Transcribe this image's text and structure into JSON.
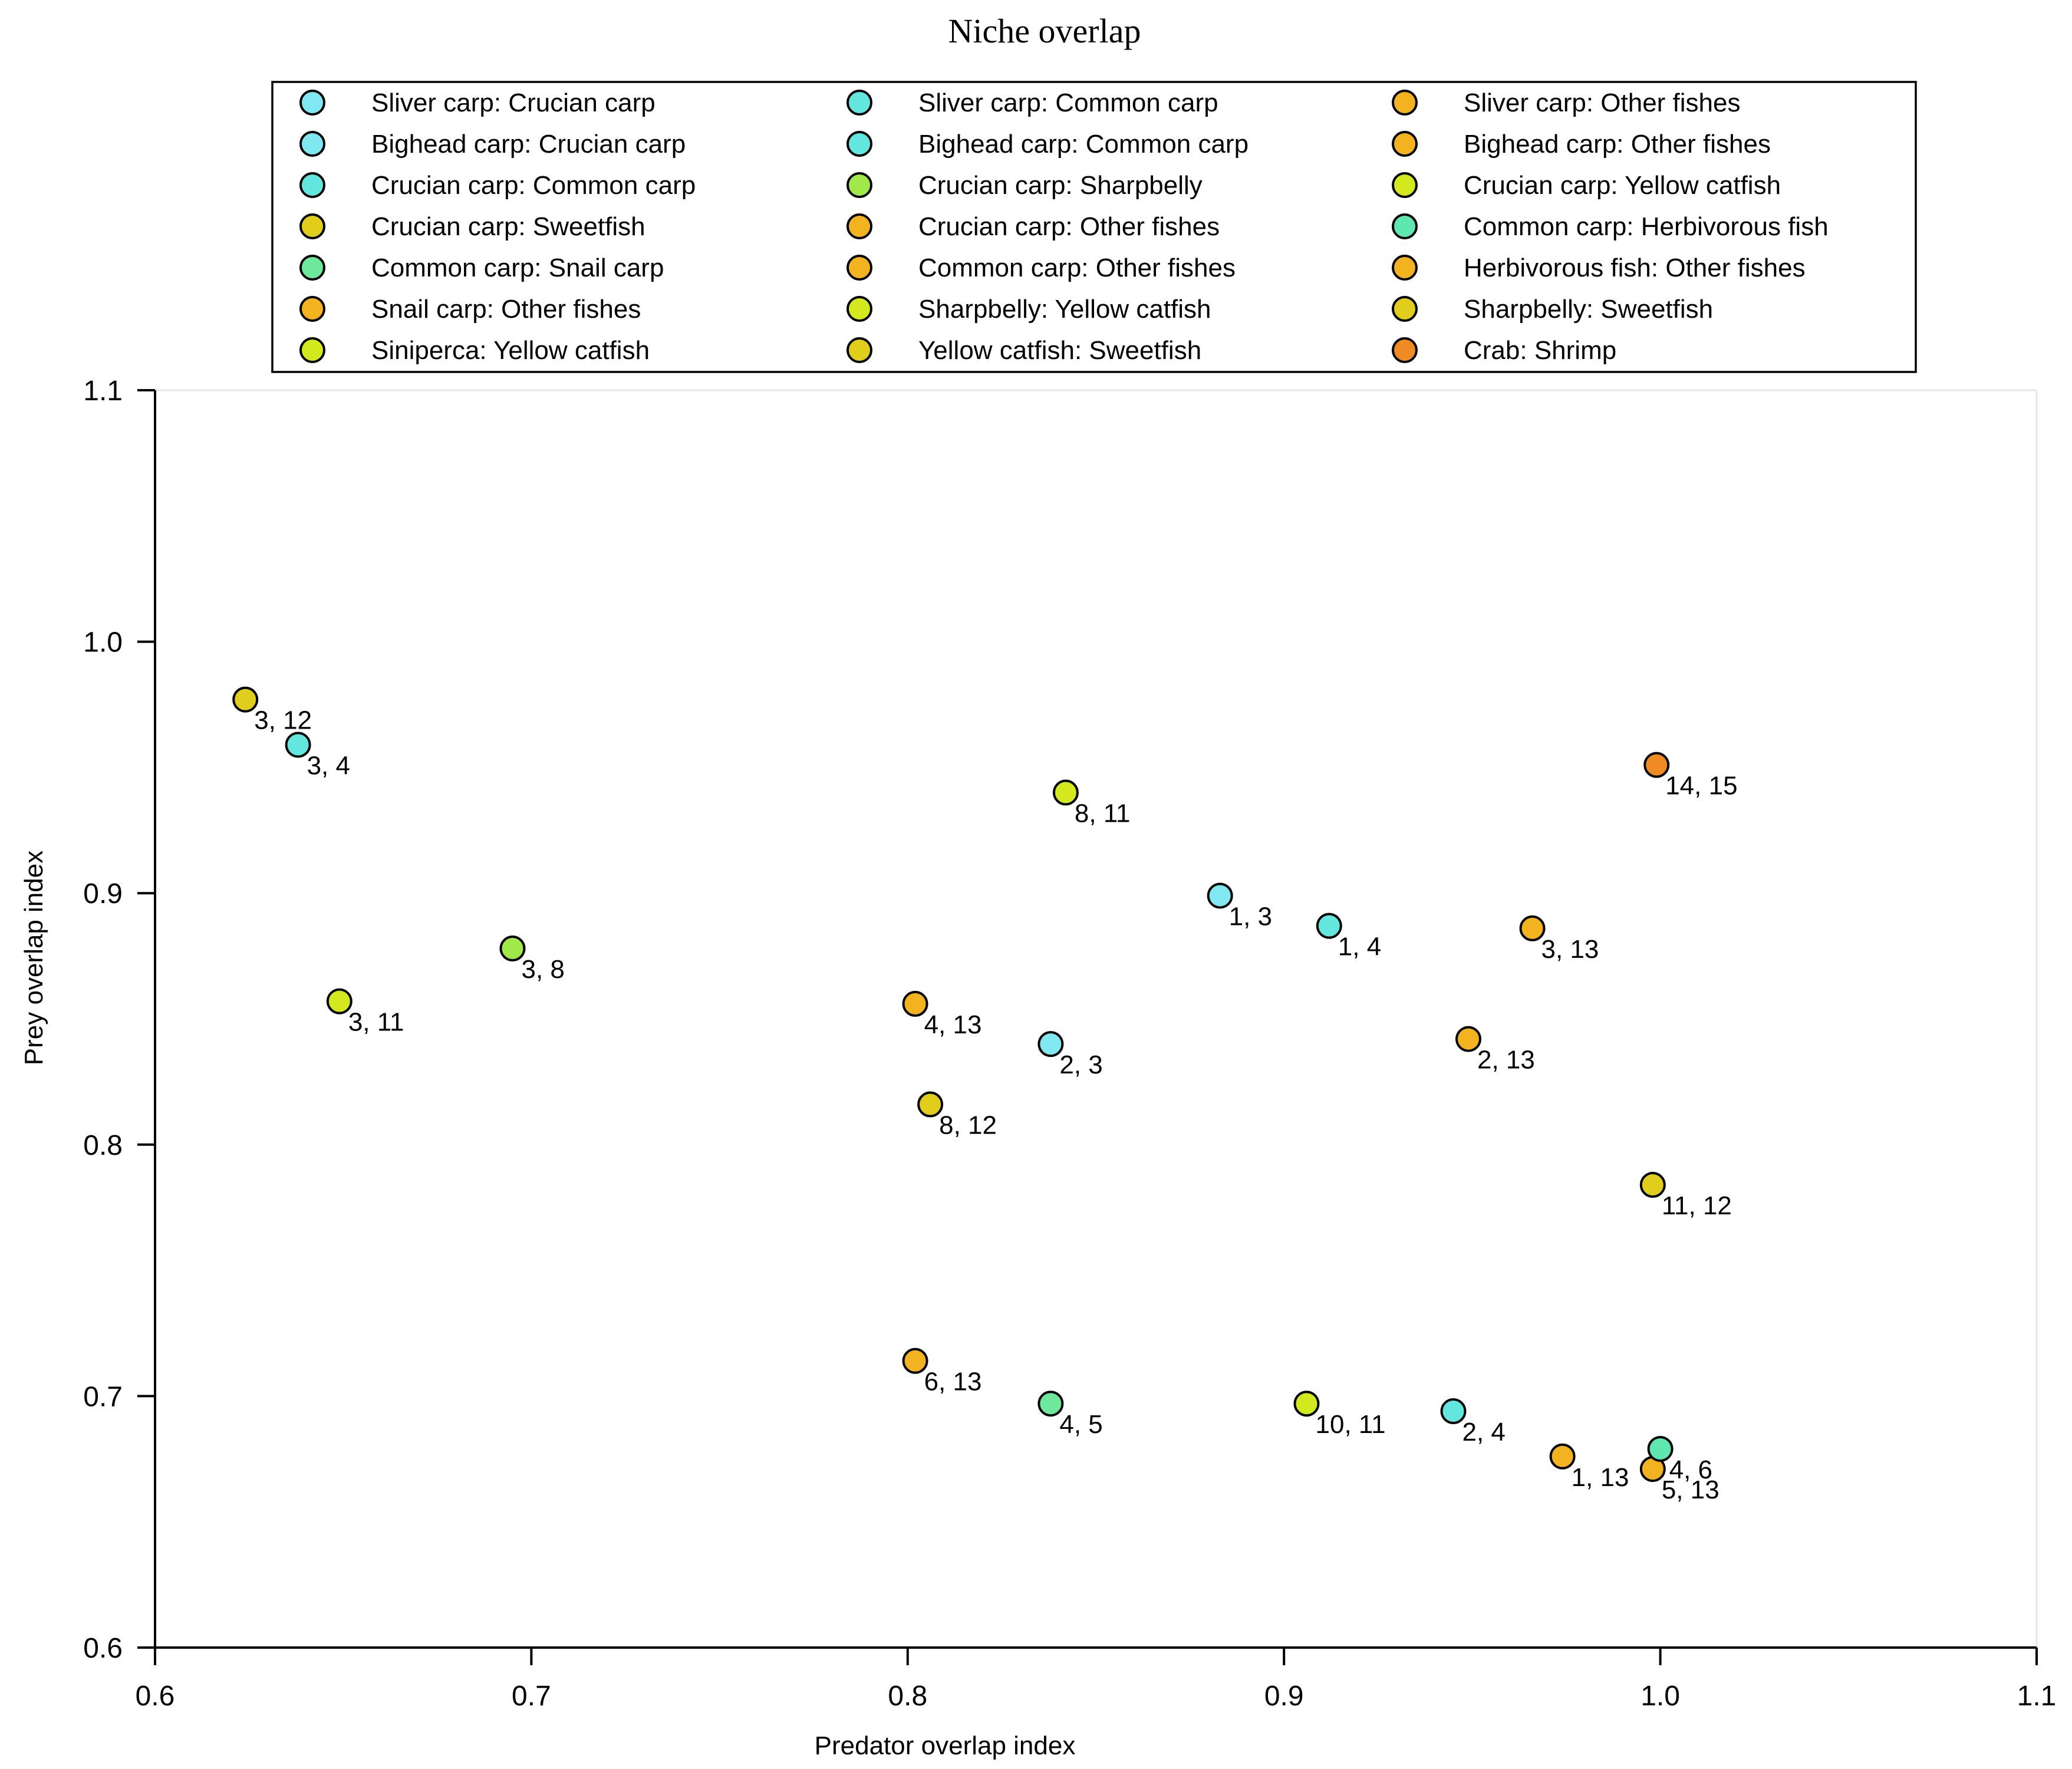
{
  "chart_data": {
    "type": "scatter",
    "title": "Niche overlap",
    "xlabel": "Predator overlap index",
    "ylabel": "Prey overlap index",
    "xlim": [
      0.6,
      1.1
    ],
    "ylim": [
      0.6,
      1.1
    ],
    "xticks": [
      "0.6",
      "0.7",
      "0.8",
      "0.9",
      "1.0",
      "1.1"
    ],
    "yticks": [
      "0.6",
      "0.7",
      "0.8",
      "0.9",
      "1.0",
      "1.1"
    ],
    "grid": false,
    "legend_position": "top-center",
    "series": [
      {
        "name": "Sliver carp: Crucian carp",
        "color": "#7fe8f0",
        "points": [
          {
            "x": 0.883,
            "y": 0.899,
            "label": "1, 3"
          }
        ]
      },
      {
        "name": "Bighead carp: Crucian carp",
        "color": "#7fe8f0",
        "points": [
          {
            "x": 0.838,
            "y": 0.84,
            "label": "2, 3"
          }
        ]
      },
      {
        "name": "Crucian carp: Common carp",
        "color": "#62e6dd",
        "points": [
          {
            "x": 0.638,
            "y": 0.959,
            "label": "3, 4"
          }
        ]
      },
      {
        "name": "Crucian carp: Sweetfish",
        "color": "#e0cd1c",
        "points": [
          {
            "x": 0.624,
            "y": 0.977,
            "label": "3, 12"
          }
        ]
      },
      {
        "name": "Common carp: Snail carp",
        "color": "#6ee89a",
        "points": [
          {
            "x": 0.838,
            "y": 0.697,
            "label": "4, 5"
          }
        ]
      },
      {
        "name": "Snail carp: Other fishes",
        "color": "#f3b21f",
        "points": [
          {
            "x": 0.998,
            "y": 0.671,
            "label": "5, 13"
          }
        ]
      },
      {
        "name": "Siniperca: Yellow catfish",
        "color": "#d3e81d",
        "points": [
          {
            "x": 0.906,
            "y": 0.697,
            "label": "10, 11"
          }
        ]
      },
      {
        "name": "Sliver carp: Common carp",
        "color": "#62e6dd",
        "points": [
          {
            "x": 0.912,
            "y": 0.887,
            "label": "1, 4"
          }
        ]
      },
      {
        "name": "Bighead carp: Common carp",
        "color": "#62e6dd",
        "points": [
          {
            "x": 0.945,
            "y": 0.694,
            "label": "2, 4"
          }
        ]
      },
      {
        "name": "Crucian carp: Sharpbelly",
        "color": "#a1e84b",
        "points": [
          {
            "x": 0.695,
            "y": 0.878,
            "label": "3, 8"
          }
        ]
      },
      {
        "name": "Crucian carp: Other fishes",
        "color": "#f3b21f",
        "points": [
          {
            "x": 0.966,
            "y": 0.886,
            "label": "3, 13"
          }
        ]
      },
      {
        "name": "Common carp: Other fishes",
        "color": "#f3b21f",
        "points": [
          {
            "x": 0.802,
            "y": 0.856,
            "label": "4, 13"
          }
        ]
      },
      {
        "name": "Sharpbelly: Yellow catfish",
        "color": "#d3e81d",
        "points": [
          {
            "x": 0.842,
            "y": 0.94,
            "label": "8, 11"
          }
        ]
      },
      {
        "name": "Yellow catfish: Sweetfish",
        "color": "#e0cd1c",
        "points": [
          {
            "x": 0.998,
            "y": 0.784,
            "label": "11, 12"
          }
        ]
      },
      {
        "name": "Sliver carp: Other fishes",
        "color": "#f3b21f",
        "points": [
          {
            "x": 0.974,
            "y": 0.676,
            "label": "1, 13"
          }
        ]
      },
      {
        "name": "Bighead carp: Other fishes",
        "color": "#f3b21f",
        "points": [
          {
            "x": 0.949,
            "y": 0.842,
            "label": "2, 13"
          }
        ]
      },
      {
        "name": "Crucian carp: Yellow catfish",
        "color": "#d3e81d",
        "points": [
          {
            "x": 0.649,
            "y": 0.857,
            "label": "3, 11"
          }
        ]
      },
      {
        "name": "Common carp: Herbivorous fish",
        "color": "#5ee8b0",
        "points": [
          {
            "x": 1.0,
            "y": 0.679,
            "label": "4, 6"
          }
        ]
      },
      {
        "name": "Herbivorous fish: Other fishes",
        "color": "#f3b21f",
        "points": [
          {
            "x": 0.802,
            "y": 0.714,
            "label": "6, 13"
          }
        ]
      },
      {
        "name": "Sharpbelly: Sweetfish",
        "color": "#e0cd1c",
        "points": [
          {
            "x": 0.806,
            "y": 0.816,
            "label": "8, 12"
          }
        ]
      },
      {
        "name": "Crab: Shrimp",
        "color": "#f08a22",
        "points": [
          {
            "x": 0.999,
            "y": 0.951,
            "label": "14, 15"
          }
        ]
      }
    ]
  }
}
